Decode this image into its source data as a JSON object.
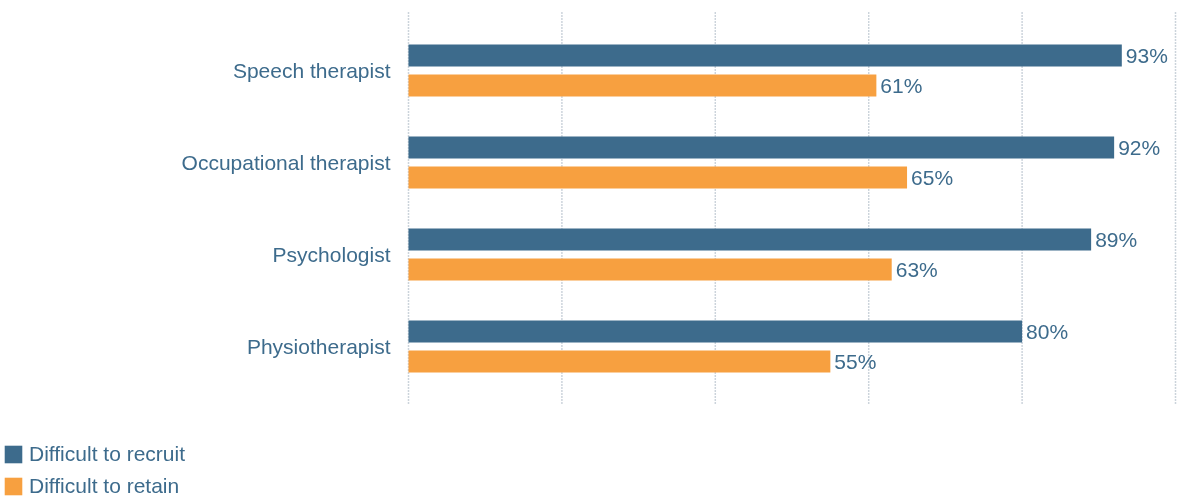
{
  "chart_data": {
    "type": "bar",
    "orientation": "horizontal",
    "categories": [
      "Speech therapist",
      "Occupational therapist",
      "Psychologist",
      "Physiotherapist"
    ],
    "series": [
      {
        "name": "Difficult to recruit",
        "color": "#3d6b8c",
        "values": [
          93,
          92,
          89,
          80
        ],
        "value_labels": [
          "93%",
          "92%",
          "89%",
          "80%"
        ]
      },
      {
        "name": "Difficult to retain",
        "color": "#f7a040",
        "values": [
          61,
          65,
          63,
          55
        ],
        "value_labels": [
          "61%",
          "65%",
          "63%",
          "55%"
        ]
      }
    ],
    "xlim": [
      0,
      100
    ],
    "xticks": [
      {
        "value": 0,
        "label": null
      },
      {
        "value": 20,
        "label": null
      },
      {
        "value": 40,
        "label": null
      },
      {
        "value": 60,
        "label": null
      },
      {
        "value": 80,
        "label": null
      },
      {
        "value": 100,
        "label": null
      }
    ],
    "tick_labels": "y",
    "grid": "x",
    "legend": "bottom left"
  }
}
